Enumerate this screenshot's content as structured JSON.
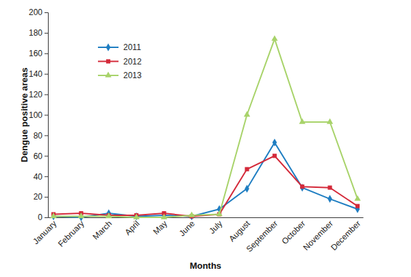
{
  "chart_data": {
    "type": "line",
    "x_label": "Months",
    "y_label": "Dengue positive areas",
    "categories": [
      "January",
      "February",
      "March",
      "April",
      "May",
      "June",
      "July",
      "August",
      "September",
      "October",
      "November",
      "December"
    ],
    "series": [
      {
        "name": "2011",
        "color": "#1f7ec2",
        "marker": "diamond",
        "values": [
          1,
          0,
          4,
          1,
          2,
          1,
          8,
          28,
          73,
          29,
          18,
          8
        ]
      },
      {
        "name": "2012",
        "color": "#d42a3a",
        "marker": "square",
        "values": [
          3,
          4,
          2,
          2,
          4,
          1,
          3,
          47,
          60,
          30,
          29,
          11
        ]
      },
      {
        "name": "2013",
        "color": "#a8d36a",
        "marker": "triangle",
        "values": [
          1,
          1,
          1,
          0,
          0,
          2,
          3,
          100,
          174,
          93,
          93,
          18
        ]
      }
    ],
    "ylim": [
      0,
      200
    ],
    "yticks": [
      0,
      20,
      40,
      60,
      80,
      100,
      120,
      140,
      160,
      180,
      200
    ],
    "legend": "upper left"
  }
}
